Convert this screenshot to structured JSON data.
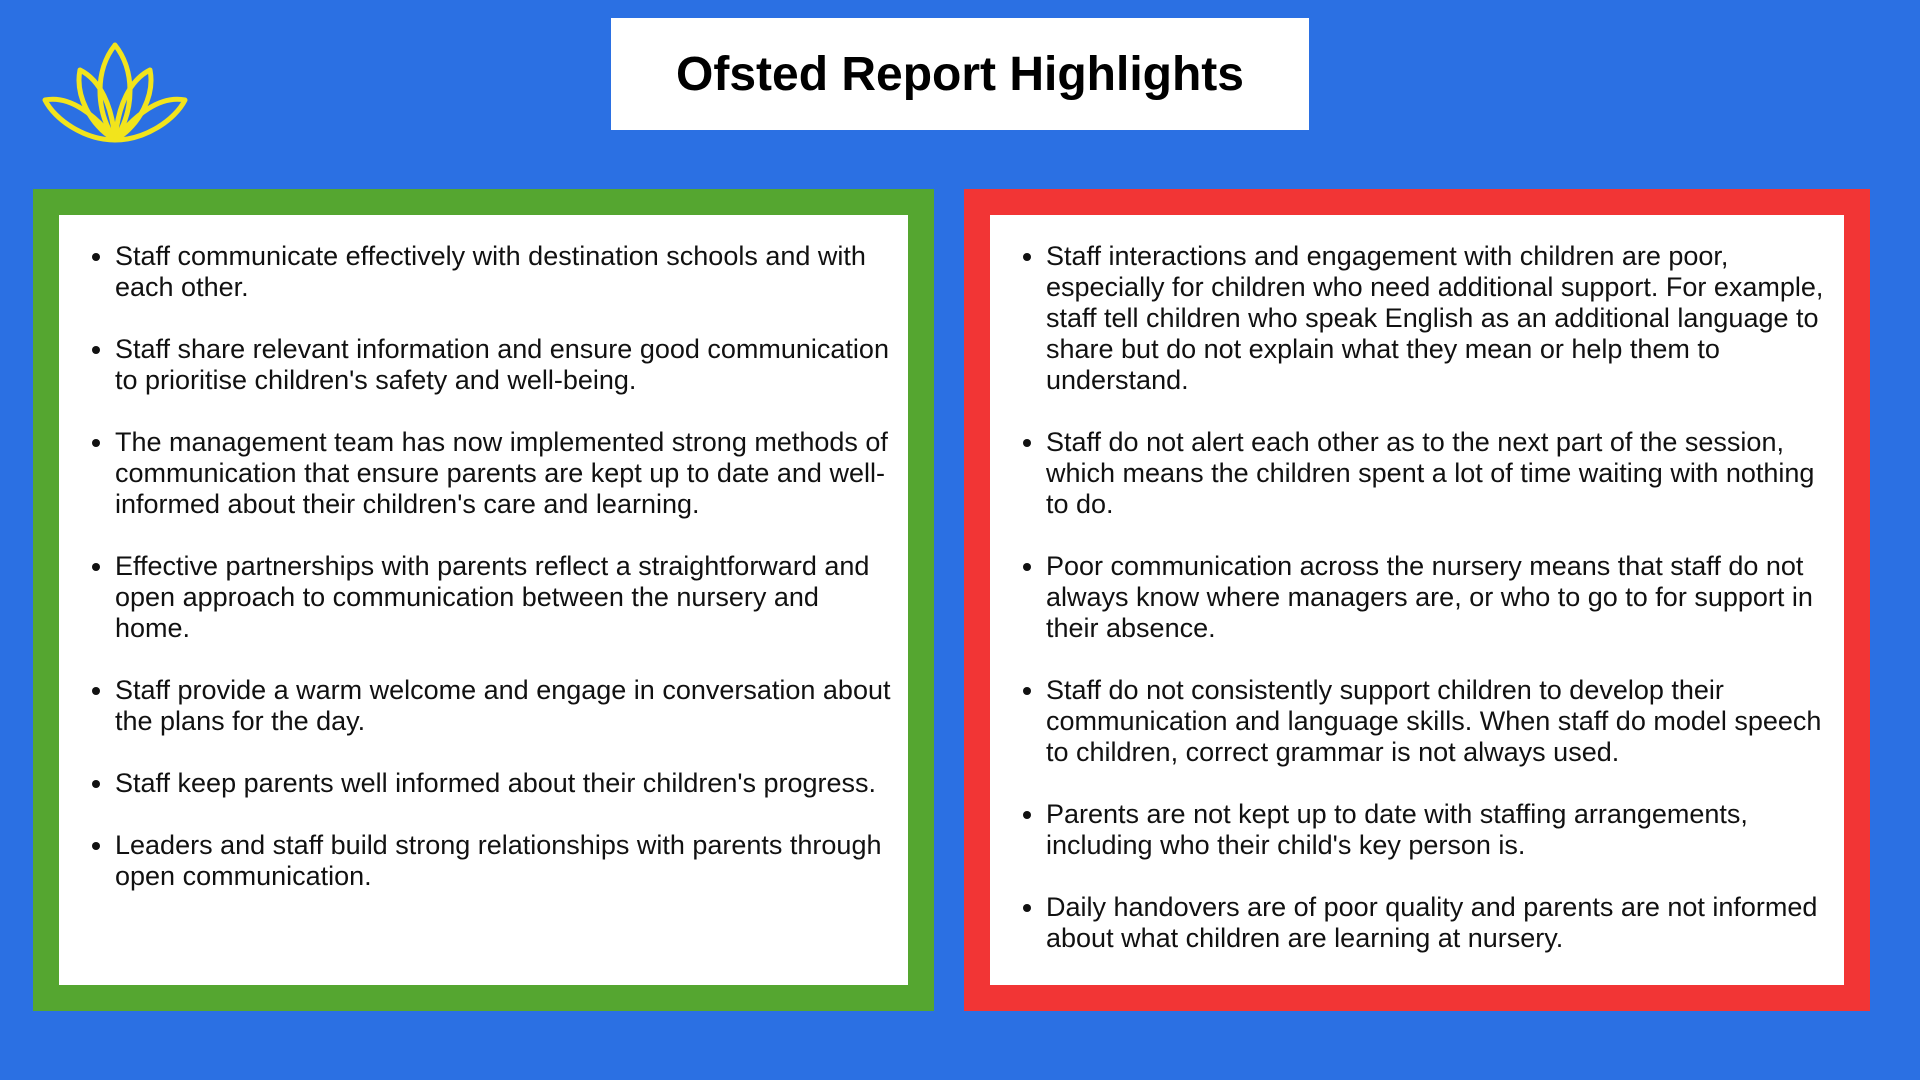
{
  "header": {
    "title": "Ofsted Report Highlights"
  },
  "strengths": {
    "items": [
      "Staff communicate effectively with destination schools and with each other.",
      "Staff share relevant information and ensure good communication to prioritise children's safety and well-being.",
      "The management team has now implemented strong methods of communication that ensure parents are kept up to date and well-informed about their children's care and learning.",
      "Effective partnerships with parents reflect a straightforward and open approach to communication between the nursery and home.",
      "Staff provide a warm welcome and engage in conversation about the plans for the day.",
      "Staff keep parents well informed about their children's progress.",
      "Leaders and staff build strong relationships with parents through open communication."
    ]
  },
  "weaknesses": {
    "items": [
      "Staff interactions and engagement with children are poor, especially for children who need additional support. For example, staff tell children who speak English as an additional language to share but do not explain what they mean or help them to understand.",
      "Staff do not alert each other as to the next part of the session, which means the children spent a lot of time waiting with nothing to do.",
      "Poor communication across the nursery means that staff do not always know where managers are, or who to go to for support in their absence.",
      "Staff do not consistently support children to develop their communication and language skills. When staff do model speech to children, correct grammar is not always used.",
      "Parents are not kept up to date with staffing arrangements, including who their child's key person is.",
      "Daily handovers are of poor quality and parents are not informed about what children are learning at nursery."
    ]
  }
}
